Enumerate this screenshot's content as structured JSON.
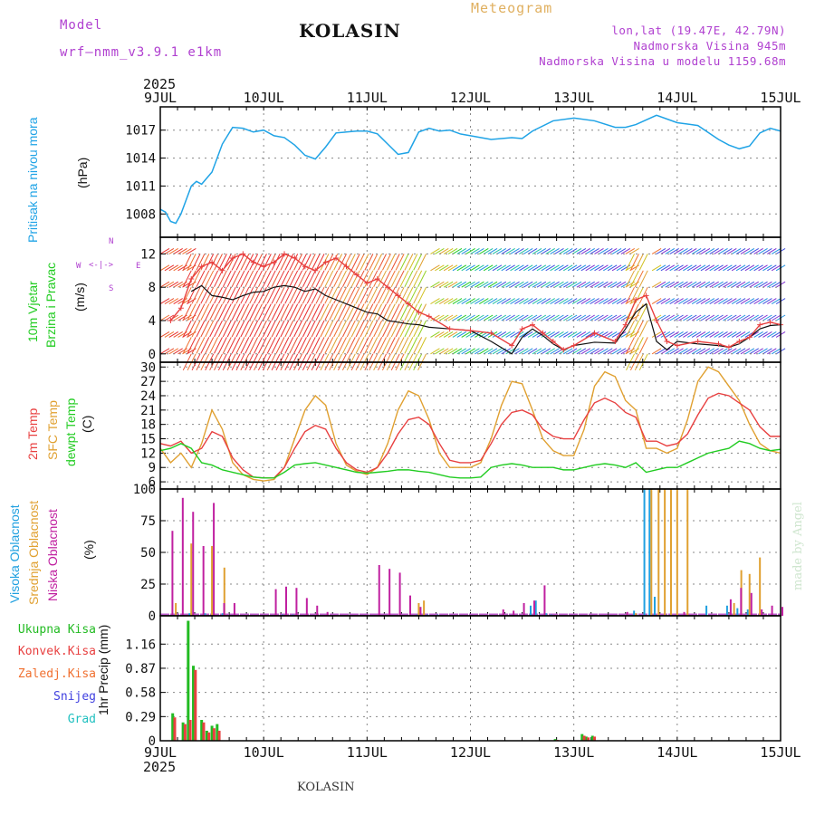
{
  "header": {
    "model_label": "Model",
    "model_name": "wrf–nmm_v3.9.1 e1km",
    "station": "KOLASIN",
    "product": "Meteogram",
    "coords": "lon,lat (19.47E, 42.79N)",
    "altitude": "Nadmorska Visina 945m",
    "model_altitude": "Nadmorska Visina u modelu 1159.68m",
    "year_top": "2025",
    "year_bottom": "2025",
    "footer_station": "KOLASIN",
    "watermark": "made by Angel"
  },
  "colors": {
    "pressure": "#1fa3e6",
    "wind_label": "#22cc22",
    "temp2m": "#e84040",
    "sfc_temp": "#e0a030",
    "dewpt": "#22cc22",
    "cloud_high": "#20a0e0",
    "cloud_mid": "#e0a030",
    "cloud_low": "#c020a0",
    "precip_total": "#22bb22",
    "precip_conv": "#e84040",
    "precip_frozen": "#f07030",
    "snow": "#4040e0",
    "graupel": "#20c0c0",
    "header_purple": "#b040d0",
    "header_orange": "#e0b060"
  },
  "panels": {
    "pressure": {
      "label": "Pritisak na nivou mora",
      "unit": "(hPa)"
    },
    "wind": {
      "label1": "10m Vjetar",
      "label2": "Brzina i Pravac",
      "unit": "(m/s)",
      "compass": [
        "N",
        "S",
        "W",
        "E"
      ]
    },
    "temp": {
      "label1": "2m Temp",
      "label2": "SFC Temp",
      "label3": "dewpt Temp",
      "unit": "(C)"
    },
    "cloud": {
      "label1": "Visoka Oblacnost",
      "label2": "Srednja Oblacnost",
      "label3": "Niska Oblacnost",
      "unit": "(%)"
    },
    "precip": {
      "label": "1hr Precip (mm)",
      "legend": [
        "Ukupna Kisa",
        "Konvek.Kisa",
        "Zaledj.Kisa",
        "Snijeg",
        "Grad"
      ]
    }
  },
  "chart_data": [
    {
      "type": "line",
      "title": "Pritisak na nivou mora",
      "ylabel": "(hPa)",
      "x_ticks": [
        "9JUL",
        "10JUL",
        "11JUL",
        "12JUL",
        "13JUL",
        "14JUL",
        "15JUL"
      ],
      "ylim": [
        1005.5,
        1019.5
      ],
      "yticks": [
        1008,
        1011,
        1014,
        1017
      ],
      "series": [
        {
          "x": [
            0,
            0.05,
            0.1,
            0.15,
            0.2,
            0.25,
            0.3,
            0.35,
            0.4,
            0.5,
            0.6,
            0.7,
            0.8,
            0.9,
            1.0,
            1.1,
            1.2,
            1.3,
            1.4,
            1.5,
            1.6,
            1.7,
            1.8,
            1.9,
            2.0,
            2.1,
            2.2,
            2.3,
            2.4,
            2.5,
            2.6,
            2.7,
            2.8,
            2.9,
            3.0,
            3.2,
            3.4,
            3.5,
            3.6,
            3.8,
            4.0,
            4.2,
            4.4,
            4.5,
            4.6,
            4.8,
            5.0,
            5.2,
            5.4,
            5.5,
            5.6,
            5.7,
            5.8,
            5.9,
            6.0
          ],
          "values": [
            1008.5,
            1008.2,
            1007.2,
            1007.0,
            1008.0,
            1009.5,
            1011.0,
            1011.5,
            1011.2,
            1012.5,
            1015.5,
            1017.3,
            1017.2,
            1016.8,
            1017.0,
            1016.4,
            1016.2,
            1015.4,
            1014.3,
            1013.9,
            1015.2,
            1016.7,
            1016.8,
            1016.9,
            1016.9,
            1016.6,
            1015.5,
            1014.4,
            1014.6,
            1016.8,
            1017.2,
            1016.9,
            1017.0,
            1016.6,
            1016.4,
            1016.0,
            1016.2,
            1016.1,
            1016.9,
            1018.0,
            1018.3,
            1018.0,
            1017.3,
            1017.3,
            1017.6,
            1018.6,
            1017.8,
            1017.5,
            1016.0,
            1015.4,
            1015.0,
            1015.3,
            1016.7,
            1017.2,
            1016.9
          ]
        }
      ]
    },
    {
      "type": "line",
      "title": "10m Vjetar Brzina i Pravac",
      "ylabel": "(m/s)",
      "ylim": [
        -1,
        14
      ],
      "yticks": [
        0,
        4,
        8,
        12
      ],
      "series": [
        {
          "name": "black",
          "x": [
            0.3,
            0.4,
            0.5,
            0.6,
            0.7,
            0.8,
            0.9,
            1.0,
            1.1,
            1.2,
            1.3,
            1.4,
            1.5,
            1.6,
            1.7,
            1.8,
            1.9,
            2.0,
            2.1,
            2.2,
            2.3,
            2.4,
            2.5,
            2.6,
            2.8,
            3.0,
            3.2,
            3.4,
            3.5,
            3.6,
            3.7,
            3.8,
            3.9,
            4.0,
            4.2,
            4.4,
            4.5,
            4.6,
            4.7,
            4.8,
            4.9,
            5.0,
            5.2,
            5.4,
            5.5,
            5.6,
            5.7,
            5.8,
            5.9,
            6.0
          ],
          "values": [
            7.5,
            8.2,
            7.0,
            6.8,
            6.5,
            7.0,
            7.4,
            7.5,
            8.0,
            8.2,
            8.0,
            7.5,
            7.8,
            7.0,
            6.5,
            6.0,
            5.5,
            5.0,
            4.8,
            4.0,
            3.8,
            3.6,
            3.5,
            3.2,
            3.0,
            2.8,
            1.5,
            0.0,
            2.0,
            3.0,
            2.2,
            1.2,
            0.5,
            1.0,
            1.4,
            1.3,
            3.0,
            5.0,
            6.0,
            1.5,
            0.5,
            1.5,
            1.2,
            1.0,
            0.8,
            1.2,
            2.0,
            3.0,
            3.4,
            3.5
          ]
        },
        {
          "name": "red",
          "x": [
            0.1,
            0.2,
            0.3,
            0.4,
            0.5,
            0.6,
            0.7,
            0.8,
            0.9,
            1.0,
            1.1,
            1.2,
            1.3,
            1.4,
            1.5,
            1.6,
            1.7,
            1.8,
            1.9,
            2.0,
            2.1,
            2.2,
            2.3,
            2.4,
            2.5,
            2.6,
            2.8,
            3.0,
            3.2,
            3.4,
            3.5,
            3.6,
            3.7,
            3.8,
            3.9,
            4.0,
            4.2,
            4.4,
            4.5,
            4.6,
            4.7,
            4.8,
            4.9,
            5.0,
            5.2,
            5.4,
            5.5,
            5.6,
            5.7,
            5.8,
            5.9,
            6.0
          ],
          "values": [
            4.0,
            5.5,
            9.0,
            10.5,
            11.0,
            10.0,
            11.5,
            12.0,
            11.0,
            10.5,
            11.0,
            12.0,
            11.5,
            10.5,
            10.0,
            11.0,
            11.5,
            10.5,
            9.5,
            8.5,
            9.0,
            8.0,
            7.0,
            6.0,
            5.0,
            4.5,
            3.0,
            2.8,
            2.5,
            1.0,
            3.0,
            3.5,
            2.5,
            1.5,
            0.5,
            1.0,
            2.5,
            1.5,
            3.5,
            6.5,
            7.0,
            4.0,
            1.5,
            1.0,
            1.5,
            1.2,
            0.8,
            1.5,
            2.0,
            3.5,
            3.8,
            3.5
          ]
        }
      ]
    },
    {
      "type": "line",
      "title": "Temp",
      "ylabel": "(C)",
      "ylim": [
        4.5,
        31
      ],
      "yticks": [
        6,
        9,
        12,
        15,
        18,
        21,
        24,
        27,
        30
      ],
      "series": [
        {
          "name": "2m Temp",
          "x": [
            0,
            0.1,
            0.2,
            0.3,
            0.4,
            0.5,
            0.6,
            0.7,
            0.8,
            0.9,
            1.0,
            1.1,
            1.2,
            1.3,
            1.4,
            1.5,
            1.6,
            1.7,
            1.8,
            1.9,
            2.0,
            2.1,
            2.2,
            2.3,
            2.4,
            2.5,
            2.6,
            2.7,
            2.8,
            2.9,
            3.0,
            3.1,
            3.2,
            3.3,
            3.4,
            3.5,
            3.6,
            3.7,
            3.8,
            3.9,
            4.0,
            4.1,
            4.2,
            4.3,
            4.4,
            4.5,
            4.6,
            4.7,
            4.8,
            4.9,
            5.0,
            5.1,
            5.2,
            5.3,
            5.4,
            5.5,
            5.6,
            5.7,
            5.8,
            5.9,
            6.0
          ],
          "values": [
            14,
            13.5,
            14.5,
            12,
            13,
            16.5,
            15.5,
            11,
            8.5,
            7,
            6.8,
            6.8,
            9,
            13,
            16.5,
            17.8,
            17,
            13,
            10,
            8.5,
            8,
            9,
            12,
            16,
            19,
            19.5,
            18,
            14,
            10.5,
            10,
            10,
            10.5,
            14,
            18,
            20.5,
            21,
            20,
            17,
            15.5,
            15,
            15,
            19,
            22.5,
            23.5,
            22.5,
            20.5,
            19.5,
            14.5,
            14.5,
            13.5,
            14,
            16,
            20,
            23.5,
            24.5,
            24,
            22.5,
            21,
            17.5,
            15.5,
            15.5
          ]
        },
        {
          "name": "SFC Temp",
          "x": [
            0,
            0.1,
            0.2,
            0.3,
            0.4,
            0.5,
            0.6,
            0.7,
            0.8,
            0.9,
            1.0,
            1.1,
            1.2,
            1.3,
            1.4,
            1.5,
            1.6,
            1.7,
            1.8,
            1.9,
            2.0,
            2.1,
            2.2,
            2.3,
            2.4,
            2.5,
            2.6,
            2.7,
            2.8,
            2.9,
            3.0,
            3.1,
            3.2,
            3.3,
            3.4,
            3.5,
            3.6,
            3.7,
            3.8,
            3.9,
            4.0,
            4.1,
            4.2,
            4.3,
            4.4,
            4.5,
            4.6,
            4.7,
            4.8,
            4.9,
            5.0,
            5.1,
            5.2,
            5.3,
            5.4,
            5.5,
            5.6,
            5.7,
            5.8,
            5.9,
            6.0
          ],
          "values": [
            13,
            10,
            12,
            9,
            14,
            21,
            17,
            10,
            7.5,
            6.5,
            6.2,
            6.5,
            9,
            15,
            21,
            24,
            22,
            14,
            9.5,
            8.2,
            7.5,
            9,
            14,
            21,
            25,
            24,
            19,
            12,
            9,
            9,
            9,
            10,
            15,
            22,
            27,
            26.5,
            21,
            15,
            12.5,
            11.5,
            11.5,
            17,
            26,
            29,
            28,
            23,
            21,
            13,
            13,
            12,
            13,
            19,
            27,
            30,
            29,
            26,
            23,
            18,
            14,
            12.5,
            12
          ]
        },
        {
          "name": "dewpt Temp",
          "x": [
            0,
            0.1,
            0.2,
            0.3,
            0.4,
            0.5,
            0.6,
            0.7,
            0.8,
            0.9,
            1.0,
            1.1,
            1.2,
            1.3,
            1.4,
            1.5,
            1.6,
            1.7,
            1.8,
            1.9,
            2.0,
            2.1,
            2.2,
            2.3,
            2.4,
            2.5,
            2.6,
            2.7,
            2.8,
            2.9,
            3.0,
            3.1,
            3.2,
            3.3,
            3.4,
            3.5,
            3.6,
            3.7,
            3.8,
            3.9,
            4.0,
            4.1,
            4.2,
            4.3,
            4.4,
            4.5,
            4.6,
            4.7,
            4.8,
            4.9,
            5.0,
            5.1,
            5.2,
            5.3,
            5.4,
            5.5,
            5.6,
            5.7,
            5.8,
            5.9,
            6.0
          ],
          "values": [
            12.5,
            13,
            14,
            13,
            10,
            9.5,
            8.5,
            8,
            7.5,
            7,
            6.8,
            6.8,
            8,
            9.5,
            9.8,
            10,
            9.5,
            9,
            8.5,
            8,
            7.8,
            8,
            8.2,
            8.5,
            8.5,
            8.2,
            8,
            7.5,
            7,
            6.8,
            6.8,
            7,
            9,
            9.5,
            9.8,
            9.5,
            9,
            9,
            9,
            8.5,
            8.5,
            9,
            9.5,
            9.8,
            9.5,
            9,
            10,
            8,
            8.5,
            9,
            9,
            10,
            11,
            12,
            12.5,
            13,
            14.5,
            14,
            13,
            12.5,
            12.8
          ]
        }
      ]
    },
    {
      "type": "bar",
      "title": "Oblacnost",
      "ylabel": "(%)",
      "ylim": [
        0,
        100
      ],
      "yticks": [
        0,
        25,
        50,
        75,
        100
      ],
      "series": [
        {
          "name": "Visoka Oblacnost",
          "x": [
            0.3,
            0.45,
            0.62,
            1.2,
            1.3,
            2.5,
            2.6,
            2.7,
            3.6,
            3.65,
            3.75,
            3.8,
            4.6,
            4.7,
            4.75,
            4.8,
            4.9,
            5.3,
            5.5,
            5.6,
            5.7
          ],
          "values": [
            2,
            2,
            2,
            1,
            1,
            1,
            1,
            1,
            8,
            12,
            2,
            1,
            4,
            100,
            100,
            15,
            1,
            8,
            8,
            6,
            5
          ]
        },
        {
          "name": "Srednja Oblacnost",
          "x": [
            0.15,
            0.3,
            0.5,
            0.62,
            2.5,
            2.55,
            4.6,
            4.75,
            4.82,
            4.88,
            4.94,
            5.0,
            5.1,
            5.55,
            5.62,
            5.7,
            5.8
          ],
          "values": [
            10,
            57,
            55,
            38,
            10,
            12,
            2,
            100,
            100,
            100,
            100,
            100,
            100,
            10,
            36,
            33,
            46
          ]
        },
        {
          "name": "Niska Oblacnost",
          "x": [
            0.1,
            0.2,
            0.3,
            0.4,
            0.5,
            0.6,
            0.7,
            1.1,
            1.2,
            1.3,
            1.4,
            1.5,
            1.6,
            2.1,
            2.2,
            2.3,
            2.4,
            2.5,
            3.3,
            3.4,
            3.5,
            3.6,
            3.7,
            4.5,
            5.05,
            5.5,
            5.6,
            5.7,
            5.8,
            5.9,
            6.0
          ],
          "values": [
            67,
            93,
            82,
            55,
            89,
            10,
            10,
            21,
            23,
            22,
            14,
            8,
            3,
            40,
            37,
            34,
            16,
            7,
            5,
            4,
            10,
            12,
            24,
            3,
            3,
            13,
            22,
            18,
            5,
            8,
            7
          ]
        }
      ]
    },
    {
      "type": "bar",
      "title": "1hr Precip",
      "ylabel": "1hr Precip (mm)",
      "ylim": [
        0,
        1.5
      ],
      "yticks": [
        0,
        0.29,
        0.58,
        0.87,
        1.16
      ],
      "series": [
        {
          "name": "Ukupna Kisa",
          "x": [
            0.12,
            0.22,
            0.27,
            0.32,
            0.4,
            0.45,
            0.5,
            0.55,
            3.82,
            4.08,
            4.12,
            4.18
          ],
          "values": [
            0.33,
            0.22,
            1.44,
            0.9,
            0.25,
            0.12,
            0.18,
            0.2,
            0.02,
            0.08,
            0.05,
            0.06
          ]
        },
        {
          "name": "Konvek.Kisa",
          "x": [
            0.14,
            0.24,
            0.29,
            0.34,
            0.42,
            0.47,
            0.52,
            0.57,
            3.84,
            4.1,
            4.14,
            4.2
          ],
          "values": [
            0.28,
            0.2,
            0.25,
            0.85,
            0.22,
            0.1,
            0.15,
            0.12,
            0.01,
            0.06,
            0.04,
            0.05
          ]
        }
      ]
    }
  ]
}
